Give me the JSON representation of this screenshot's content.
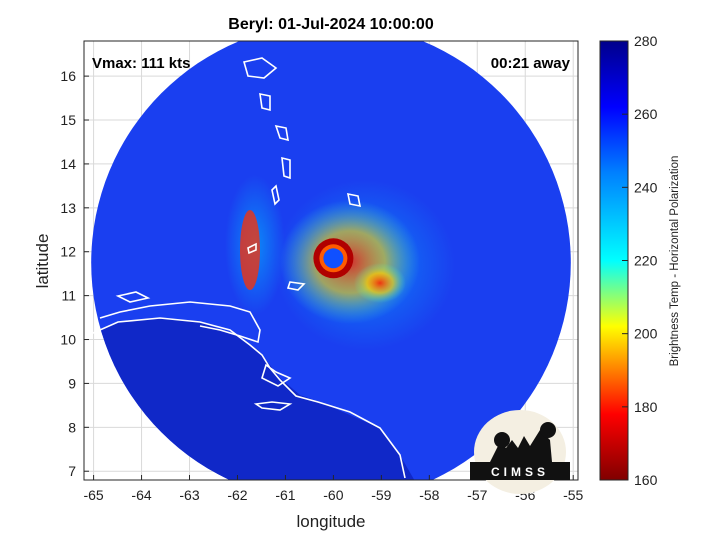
{
  "chart_data": {
    "type": "heatmap",
    "title": "Beryl: 01-Jul-2024 10:00:00",
    "xlabel": "longitude",
    "ylabel": "latitude",
    "xlim": [
      -65.2,
      -54.9
    ],
    "ylim": [
      6.8,
      16.8
    ],
    "xticks": [
      "-65",
      "-64",
      "-63",
      "-62",
      "-61",
      "-60",
      "-59",
      "-58",
      "-57",
      "-56",
      "-55"
    ],
    "yticks": [
      "7",
      "8",
      "9",
      "10",
      "11",
      "12",
      "13",
      "14",
      "15",
      "16"
    ],
    "grid": true,
    "annotations": {
      "vmax": "Vmax: 111 kts",
      "time_offset": "00:21 away"
    },
    "colorbar": {
      "label": "Brightness Temp - Horizontal Polarization",
      "range": [
        160,
        280
      ],
      "ticks": [
        "160",
        "180",
        "200",
        "220",
        "240",
        "260",
        "280"
      ],
      "colors": [
        "#800000",
        "#ff0000",
        "#ffff00",
        "#00ffff",
        "#0000ff",
        "#00008b"
      ]
    },
    "storm_center": {
      "lon": -60.0,
      "lat": 11.85,
      "eye_bt": 250,
      "eyewall_bt": 175
    },
    "swath": {
      "center_lon": -60.05,
      "center_lat": 11.75,
      "radius_deg": 5.0,
      "background_bt": 262
    },
    "logo_text": "CIMSS"
  }
}
